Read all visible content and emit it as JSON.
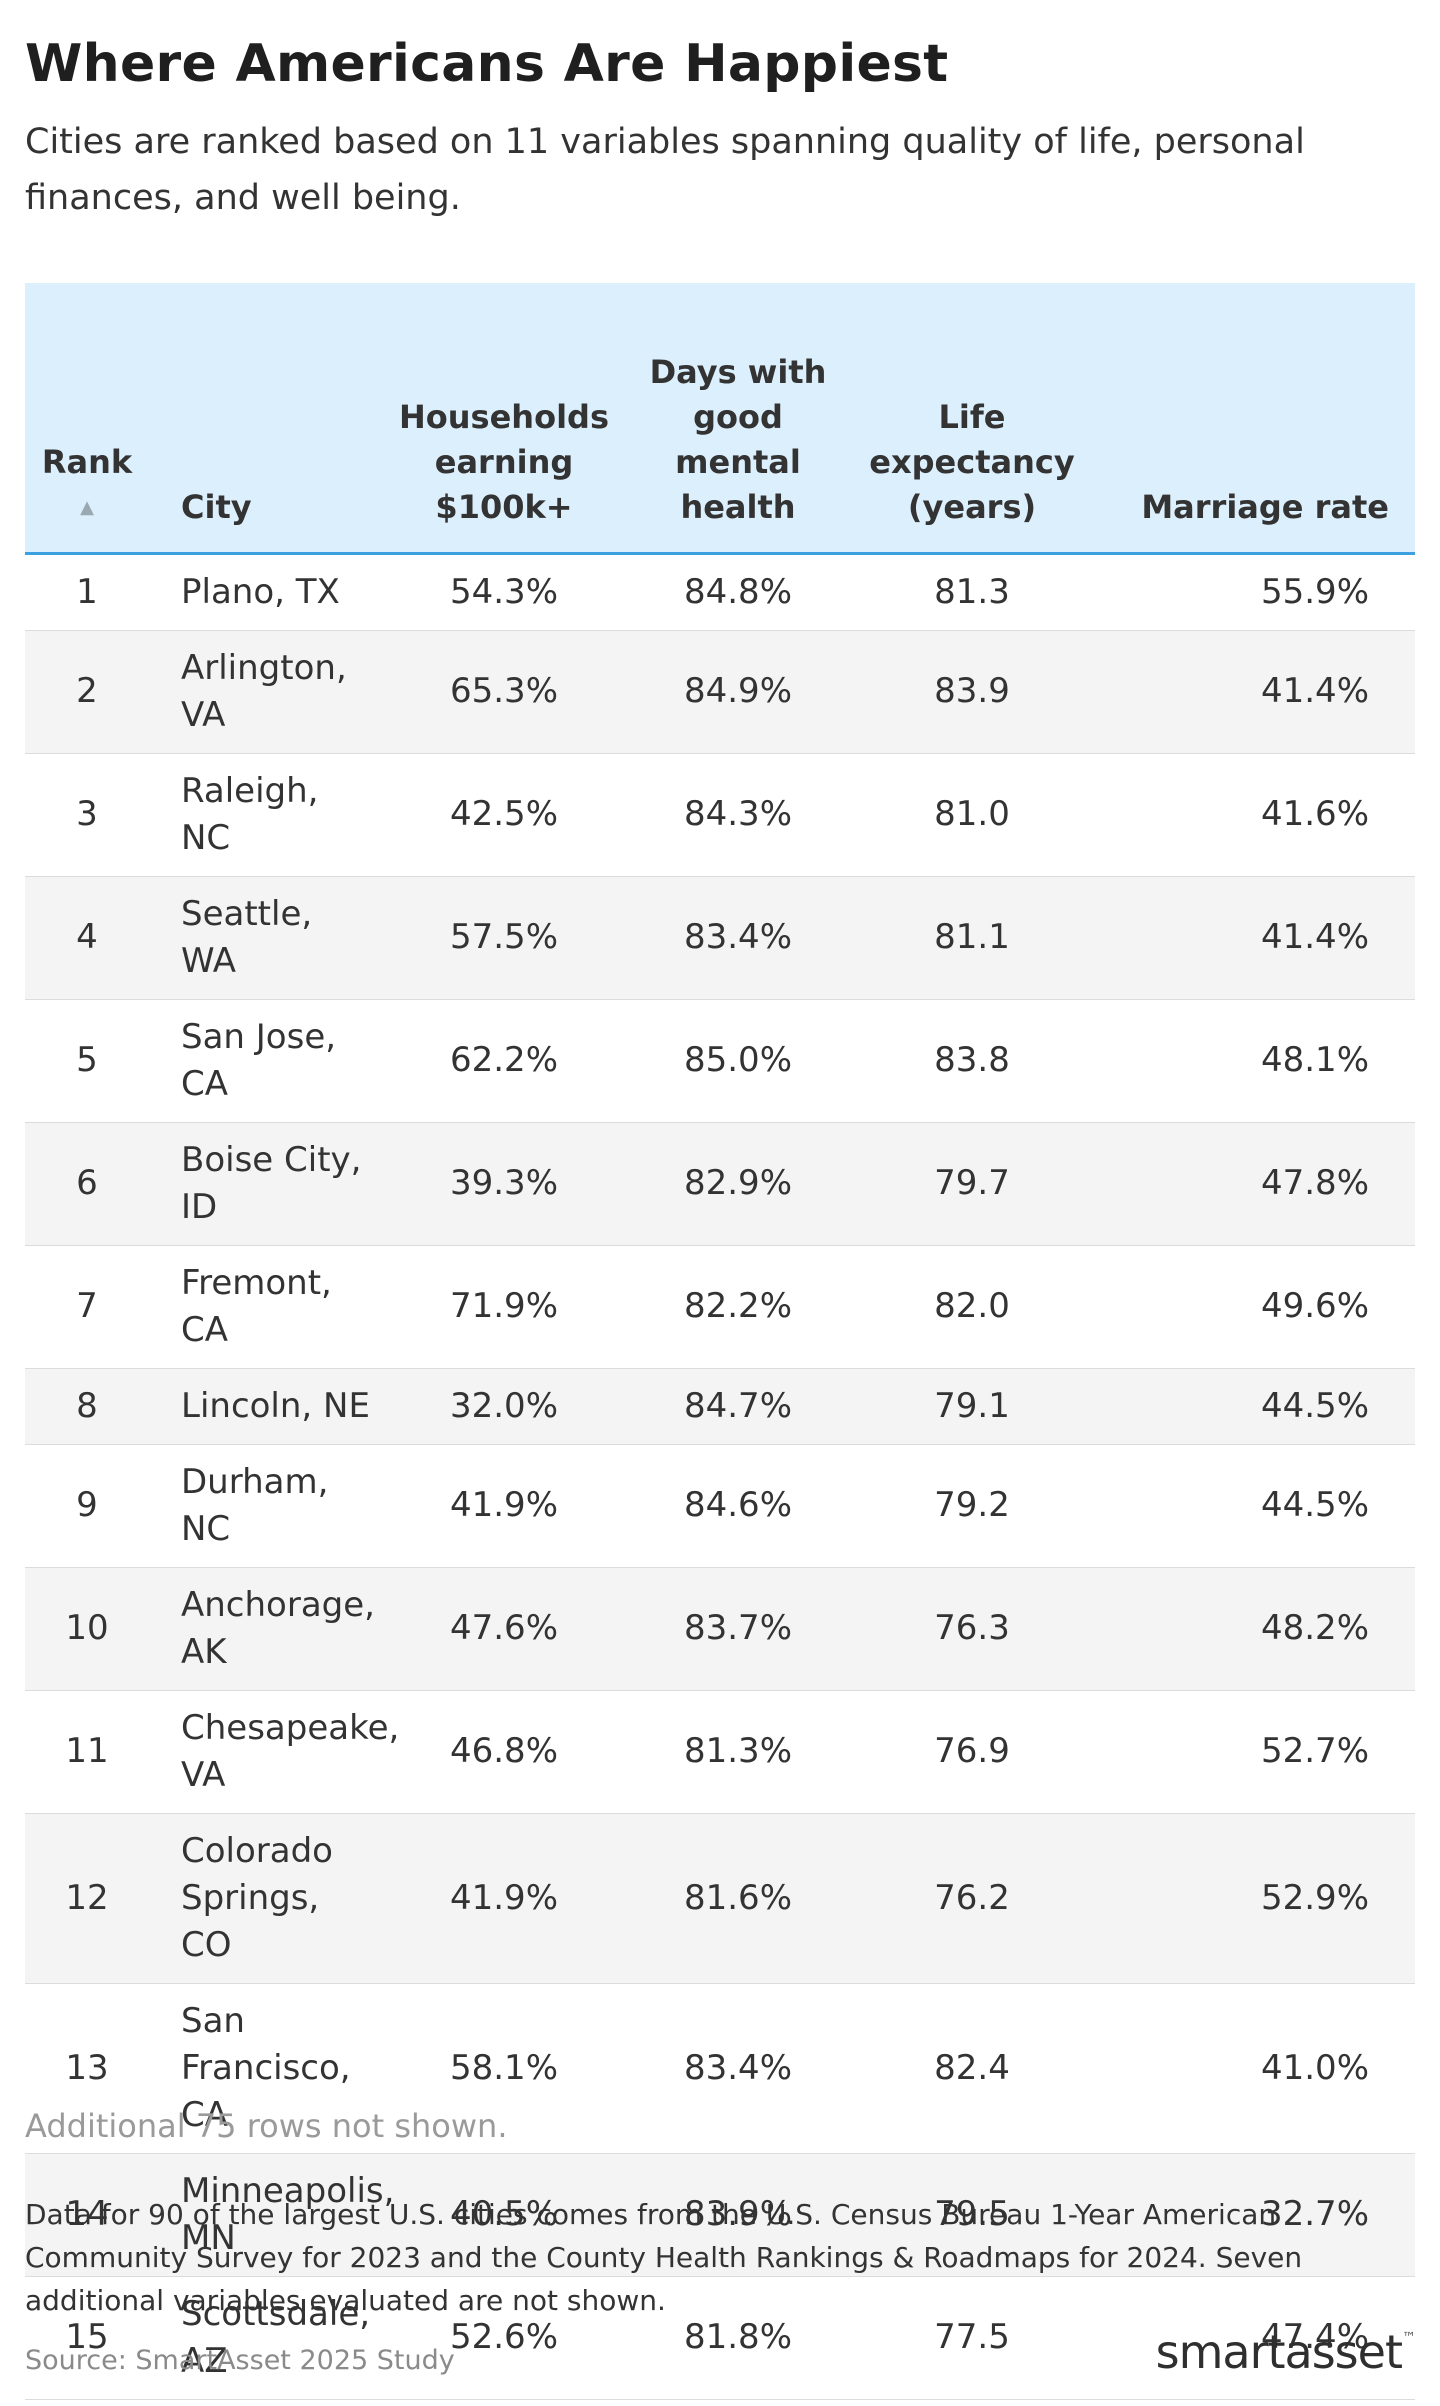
{
  "title": "Where Americans Are Happiest",
  "subtitle": "Cities are ranked based on 11 variables spanning quality of life, personal finances, and well being.",
  "table": {
    "columns": [
      "Rank",
      "City",
      "Households earning $100k+",
      "Days with good mental health",
      "Life expectancy (years)",
      "Marriage rate"
    ],
    "sort_icon": "▲",
    "sorted_column": "Rank"
  },
  "more_rows_note": "Additional 75 rows not shown.",
  "methodology_note": "Data for 90 of the largest U.S. cities comes from the U.S. Census Bureau 1-Year American Community Survey for 2023 and the County Health Rankings & Roadmaps for 2024. Seven additional variables evaluated are not shown.",
  "source": "Source: SmartAsset 2025 Study",
  "logo": {
    "text_a": "smart",
    "text_b": "asset",
    "mark": "™"
  },
  "colors": {
    "header_bg": "#dceffc",
    "header_rule": "#3b9fe0",
    "stripe": "#f4f4f4"
  },
  "chart_data": {
    "type": "table",
    "title": "Where Americans Are Happiest",
    "subtitle": "Cities are ranked based on 11 variables spanning quality of life, personal finances, and well being.",
    "columns": [
      "Rank",
      "City",
      "Households earning $100k+",
      "Days with good mental health",
      "Life expectancy (years)",
      "Marriage rate"
    ],
    "rows": [
      [
        "1",
        "Plano, TX",
        "54.3%",
        "84.8%",
        "81.3",
        "55.9%"
      ],
      [
        "2",
        "Arlington, VA",
        "65.3%",
        "84.9%",
        "83.9",
        "41.4%"
      ],
      [
        "3",
        "Raleigh, NC",
        "42.5%",
        "84.3%",
        "81.0",
        "41.6%"
      ],
      [
        "4",
        "Seattle, WA",
        "57.5%",
        "83.4%",
        "81.1",
        "41.4%"
      ],
      [
        "5",
        "San Jose, CA",
        "62.2%",
        "85.0%",
        "83.8",
        "48.1%"
      ],
      [
        "6",
        "Boise City, ID",
        "39.3%",
        "82.9%",
        "79.7",
        "47.8%"
      ],
      [
        "7",
        "Fremont, CA",
        "71.9%",
        "82.2%",
        "82.0",
        "49.6%"
      ],
      [
        "8",
        "Lincoln, NE",
        "32.0%",
        "84.7%",
        "79.1",
        "44.5%"
      ],
      [
        "9",
        "Durham, NC",
        "41.9%",
        "84.6%",
        "79.2",
        "44.5%"
      ],
      [
        "10",
        "Anchorage, AK",
        "47.6%",
        "83.7%",
        "76.3",
        "48.2%"
      ],
      [
        "11",
        "Chesapeake, VA",
        "46.8%",
        "81.3%",
        "76.9",
        "52.7%"
      ],
      [
        "12",
        "Colorado Springs, CO",
        "41.9%",
        "81.6%",
        "76.2",
        "52.9%"
      ],
      [
        "13",
        "San Francisco, CA",
        "58.1%",
        "83.4%",
        "82.4",
        "41.0%"
      ],
      [
        "14",
        "Minneapolis, MN",
        "40.5%",
        "83.9%",
        "79.5",
        "32.7%"
      ],
      [
        "15",
        "Scottsdale, AZ",
        "52.6%",
        "81.8%",
        "77.5",
        "47.4%"
      ]
    ]
  }
}
